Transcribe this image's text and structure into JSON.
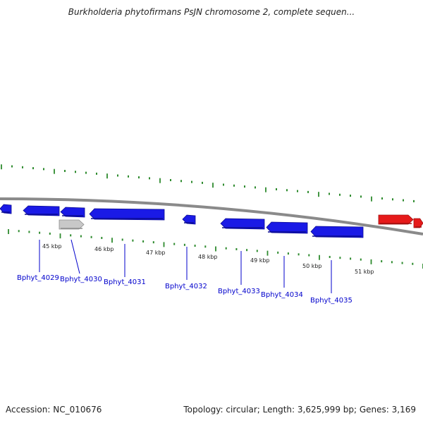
{
  "title": "Burkholderia phytofirmans PsJN chromosome 2, complete sequen...",
  "accession": "Accession: NC_010676",
  "topology_info": "Topology: circular; Length: 3,625,999 bp; Genes: 3,169",
  "colors": {
    "backbone": "#8a8a8a",
    "tick": "#2e8b2e",
    "gene_forward": "#1a1ae6",
    "gene_reverse": "#e61a1a",
    "gene_pseudo": "#c8c8c8",
    "label": "#0000cc",
    "scale_text": "#222222"
  },
  "scale_labels": [
    "45 kbp",
    "46 kbp",
    "47 kbp",
    "48 kbp",
    "49 kbp",
    "50 kbp",
    "51 kbp"
  ],
  "genes": [
    {
      "id": "gene-partial-left",
      "strand": "-",
      "color": "gene_forward",
      "label": ""
    },
    {
      "id": "gene-4029",
      "strand": "-",
      "color": "gene_forward",
      "label": "Bphyt_4029"
    },
    {
      "id": "gene-4030-a",
      "strand": "-",
      "color": "gene_forward",
      "label": "Bphyt_4030"
    },
    {
      "id": "gene-4030-b",
      "strand": "+",
      "color": "gene_pseudo",
      "label": ""
    },
    {
      "id": "gene-4031",
      "strand": "-",
      "color": "gene_forward",
      "label": "Bphyt_4031"
    },
    {
      "id": "gene-4032",
      "strand": "-",
      "color": "gene_forward",
      "label": "Bphyt_4032"
    },
    {
      "id": "gene-4033",
      "strand": "-",
      "color": "gene_forward",
      "label": "Bphyt_4033"
    },
    {
      "id": "gene-4034",
      "strand": "-",
      "color": "gene_forward",
      "label": "Bphyt_4034"
    },
    {
      "id": "gene-4035",
      "strand": "-",
      "color": "gene_forward",
      "label": "Bphyt_4035"
    },
    {
      "id": "gene-right-1",
      "strand": "+",
      "color": "gene_reverse",
      "label": ""
    },
    {
      "id": "gene-right-2",
      "strand": "+",
      "color": "gene_reverse",
      "label": ""
    }
  ]
}
